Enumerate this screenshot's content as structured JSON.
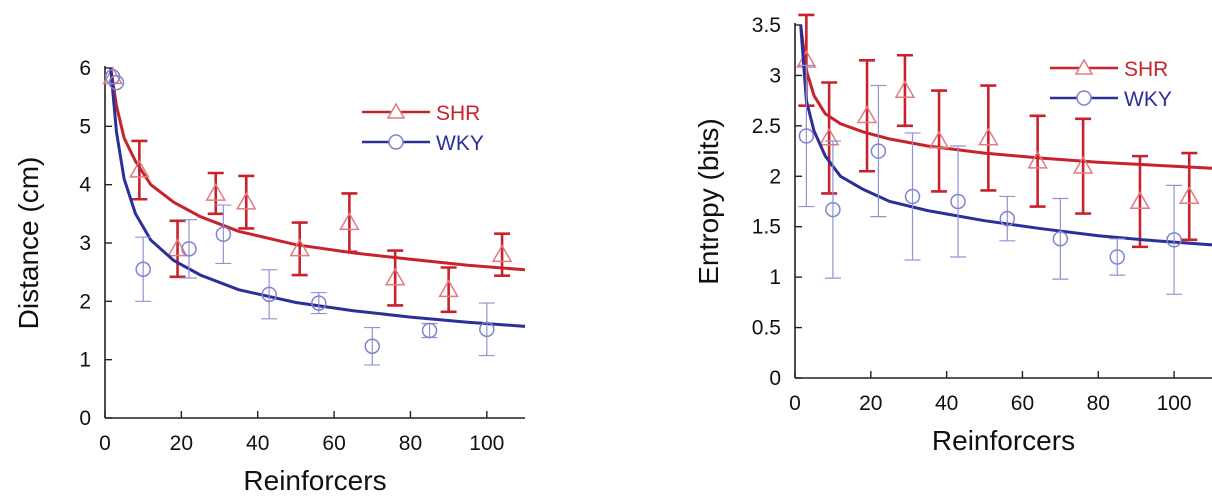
{
  "chart_data": [
    {
      "type": "scatter",
      "xlabel": "Reinforcers",
      "ylabel": "Distance (cm)",
      "xlim": [
        0,
        110
      ],
      "ylim": [
        0,
        6
      ],
      "xticks": [
        0,
        20,
        40,
        60,
        80,
        100
      ],
      "yticks": [
        0,
        1,
        2,
        3,
        4,
        5,
        6
      ],
      "grid": false,
      "legend_position": "top-right",
      "series": [
        {
          "name": "SHR",
          "color": "#c8232c",
          "marker": "triangle",
          "points": [
            {
              "x": 2,
              "y": 5.85,
              "err": 0.0
            },
            {
              "x": 9,
              "y": 4.25,
              "err": 0.5
            },
            {
              "x": 19,
              "y": 2.9,
              "err": 0.48
            },
            {
              "x": 29,
              "y": 3.85,
              "err": 0.35
            },
            {
              "x": 37,
              "y": 3.7,
              "err": 0.45
            },
            {
              "x": 51,
              "y": 2.9,
              "err": 0.45
            },
            {
              "x": 64,
              "y": 3.35,
              "err": 0.5
            },
            {
              "x": 76,
              "y": 2.4,
              "err": 0.47
            },
            {
              "x": 90,
              "y": 2.2,
              "err": 0.38
            },
            {
              "x": 104,
              "y": 2.8,
              "err": 0.36
            }
          ],
          "fit": [
            [
              1.5,
              6.05
            ],
            [
              3,
              5.35
            ],
            [
              5,
              4.8
            ],
            [
              8,
              4.4
            ],
            [
              12,
              4.0
            ],
            [
              18,
              3.7
            ],
            [
              25,
              3.45
            ],
            [
              35,
              3.2
            ],
            [
              50,
              2.97
            ],
            [
              65,
              2.83
            ],
            [
              80,
              2.72
            ],
            [
              95,
              2.62
            ],
            [
              110,
              2.54
            ]
          ]
        },
        {
          "name": "WKY",
          "color": "#2b2f98",
          "marker": "circle",
          "points": [
            {
              "x": 2,
              "y": 5.85,
              "err": 0.0
            },
            {
              "x": 3,
              "y": 5.75,
              "err": 0.0
            },
            {
              "x": 10,
              "y": 2.55,
              "err": 0.55
            },
            {
              "x": 22,
              "y": 2.9,
              "err": 0.5
            },
            {
              "x": 31,
              "y": 3.15,
              "err": 0.5
            },
            {
              "x": 43,
              "y": 2.12,
              "err": 0.42
            },
            {
              "x": 56,
              "y": 1.97,
              "err": 0.18
            },
            {
              "x": 70,
              "y": 1.23,
              "err": 0.32
            },
            {
              "x": 85,
              "y": 1.5,
              "err": 0.12
            },
            {
              "x": 100,
              "y": 1.52,
              "err": 0.45
            }
          ],
          "fit": [
            [
              1.5,
              6.05
            ],
            [
              3,
              4.9
            ],
            [
              5,
              4.1
            ],
            [
              8,
              3.5
            ],
            [
              12,
              3.05
            ],
            [
              18,
              2.7
            ],
            [
              25,
              2.45
            ],
            [
              35,
              2.2
            ],
            [
              50,
              1.98
            ],
            [
              65,
              1.84
            ],
            [
              80,
              1.73
            ],
            [
              95,
              1.64
            ],
            [
              110,
              1.57
            ]
          ]
        }
      ]
    },
    {
      "type": "scatter",
      "xlabel": "Reinforcers",
      "ylabel": "Entropy (bits)",
      "xlim": [
        0,
        110
      ],
      "ylim": [
        0,
        3.5
      ],
      "xticks": [
        0,
        20,
        40,
        60,
        80,
        100
      ],
      "yticks": [
        0,
        0.5,
        1,
        1.5,
        2,
        2.5,
        3,
        3.5
      ],
      "grid": false,
      "legend_position": "top-right",
      "series": [
        {
          "name": "SHR",
          "color": "#c8232c",
          "marker": "triangle",
          "points": [
            {
              "x": 3,
              "y": 3.15,
              "err": 0.45
            },
            {
              "x": 9,
              "y": 2.38,
              "err": 0.55
            },
            {
              "x": 19,
              "y": 2.6,
              "err": 0.55
            },
            {
              "x": 29,
              "y": 2.85,
              "err": 0.35
            },
            {
              "x": 38,
              "y": 2.35,
              "err": 0.5
            },
            {
              "x": 51,
              "y": 2.38,
              "err": 0.52
            },
            {
              "x": 64,
              "y": 2.15,
              "err": 0.45
            },
            {
              "x": 76,
              "y": 2.1,
              "err": 0.47
            },
            {
              "x": 91,
              "y": 1.75,
              "err": 0.45
            },
            {
              "x": 104,
              "y": 1.8,
              "err": 0.43
            }
          ],
          "fit": [
            [
              1.5,
              3.5
            ],
            [
              3,
              3.05
            ],
            [
              5,
              2.8
            ],
            [
              8,
              2.62
            ],
            [
              12,
              2.52
            ],
            [
              18,
              2.44
            ],
            [
              25,
              2.37
            ],
            [
              35,
              2.3
            ],
            [
              50,
              2.23
            ],
            [
              65,
              2.18
            ],
            [
              80,
              2.14
            ],
            [
              95,
              2.11
            ],
            [
              110,
              2.08
            ]
          ]
        },
        {
          "name": "WKY",
          "color": "#2b2f98",
          "marker": "circle",
          "points": [
            {
              "x": 3,
              "y": 2.4,
              "err": 0.7
            },
            {
              "x": 10,
              "y": 1.67,
              "err": 0.68
            },
            {
              "x": 22,
              "y": 2.25,
              "err": 0.65
            },
            {
              "x": 31,
              "y": 1.8,
              "err": 0.63
            },
            {
              "x": 43,
              "y": 1.75,
              "err": 0.55
            },
            {
              "x": 56,
              "y": 1.58,
              "err": 0.22
            },
            {
              "x": 70,
              "y": 1.38,
              "err": 0.4
            },
            {
              "x": 85,
              "y": 1.2,
              "err": 0.18
            },
            {
              "x": 100,
              "y": 1.37,
              "err": 0.54
            }
          ],
          "fit": [
            [
              1.5,
              3.5
            ],
            [
              3,
              2.75
            ],
            [
              5,
              2.45
            ],
            [
              8,
              2.2
            ],
            [
              12,
              2.0
            ],
            [
              18,
              1.87
            ],
            [
              25,
              1.75
            ],
            [
              35,
              1.66
            ],
            [
              50,
              1.56
            ],
            [
              65,
              1.48
            ],
            [
              80,
              1.41
            ],
            [
              95,
              1.36
            ],
            [
              110,
              1.32
            ]
          ]
        }
      ]
    }
  ]
}
